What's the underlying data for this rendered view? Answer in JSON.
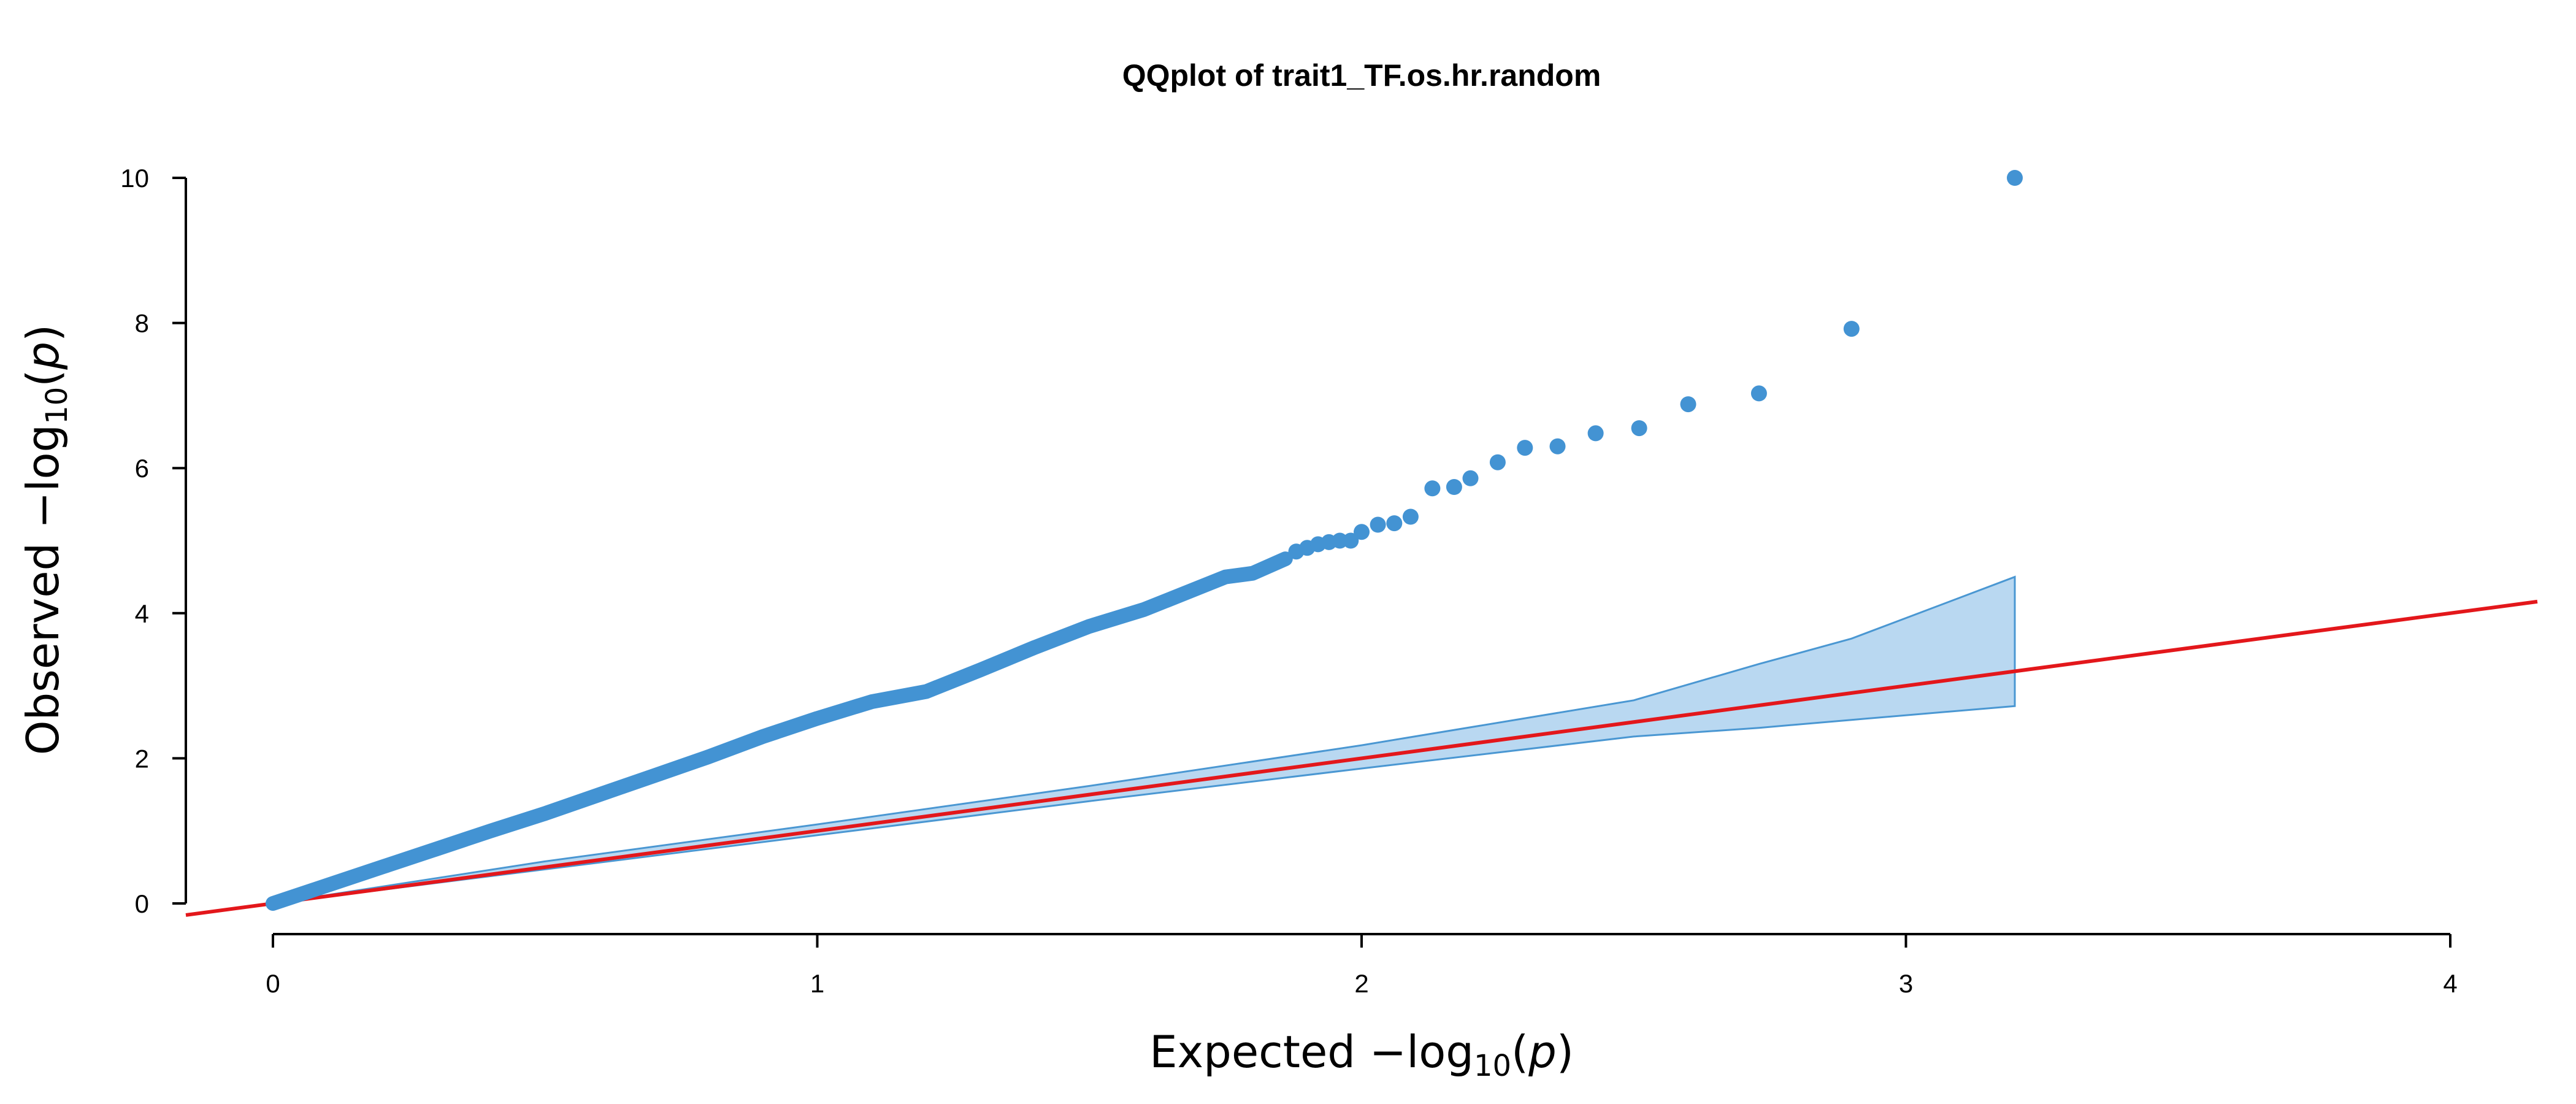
{
  "chart_data": {
    "type": "scatter",
    "title": "QQplot of trait1_TF.os.hr.random",
    "xlabel": {
      "prefix": "Expected  −log",
      "sub": "10",
      "open": "(",
      "var": "p",
      "close": ")"
    },
    "ylabel": {
      "prefix": "Observed  −log",
      "sub": "10",
      "open": "(",
      "var": "p",
      "close": ")"
    },
    "xlim": [
      0,
      4
    ],
    "ylim": [
      0,
      10
    ],
    "x_ticks": [
      "0",
      "1",
      "2",
      "3",
      "4"
    ],
    "y_ticks": [
      "0",
      "2",
      "4",
      "6",
      "8",
      "10"
    ],
    "grid": false,
    "colors": {
      "points": "#4393d3",
      "band_fill": "#b9d8f1",
      "band_stroke": "#4a97d2",
      "reference_line": "#e3171b"
    },
    "reference_line": {
      "slope": 1,
      "intercept": 0
    },
    "confidence_band": {
      "x": [
        0,
        0.5,
        1.0,
        1.5,
        2.0,
        2.5,
        2.73,
        2.9,
        3.2
      ],
      "upper": [
        0,
        0.58,
        1.09,
        1.62,
        2.18,
        2.8,
        3.3,
        3.65,
        4.5
      ],
      "lower": [
        0,
        0.47,
        0.94,
        1.41,
        1.86,
        2.3,
        2.42,
        2.53,
        2.72
      ]
    },
    "curve": [
      [
        0,
        0
      ],
      [
        0.1,
        0.25
      ],
      [
        0.2,
        0.5
      ],
      [
        0.3,
        0.75
      ],
      [
        0.4,
        1.0
      ],
      [
        0.5,
        1.24
      ],
      [
        0.6,
        1.5
      ],
      [
        0.7,
        1.76
      ],
      [
        0.8,
        2.02
      ],
      [
        0.9,
        2.3
      ],
      [
        1.0,
        2.55
      ],
      [
        1.1,
        2.78
      ],
      [
        1.2,
        2.92
      ],
      [
        1.3,
        3.22
      ],
      [
        1.4,
        3.53
      ],
      [
        1.5,
        3.82
      ],
      [
        1.6,
        4.05
      ],
      [
        1.7,
        4.35
      ],
      [
        1.75,
        4.5
      ],
      [
        1.8,
        4.55
      ],
      [
        1.86,
        4.75
      ]
    ],
    "points": [
      [
        1.88,
        4.85
      ],
      [
        1.9,
        4.9
      ],
      [
        1.92,
        4.95
      ],
      [
        1.94,
        4.98
      ],
      [
        1.96,
        5.0
      ],
      [
        1.98,
        5.0
      ],
      [
        2.0,
        5.12
      ],
      [
        2.03,
        5.22
      ],
      [
        2.06,
        5.24
      ],
      [
        2.09,
        5.33
      ],
      [
        2.13,
        5.72
      ],
      [
        2.17,
        5.74
      ],
      [
        2.2,
        5.86
      ],
      [
        2.25,
        6.08
      ],
      [
        2.3,
        6.28
      ],
      [
        2.36,
        6.3
      ],
      [
        2.43,
        6.48
      ],
      [
        2.51,
        6.55
      ],
      [
        2.6,
        6.88
      ],
      [
        2.73,
        7.03
      ],
      [
        2.9,
        7.92
      ],
      [
        3.2,
        10.0
      ]
    ]
  }
}
